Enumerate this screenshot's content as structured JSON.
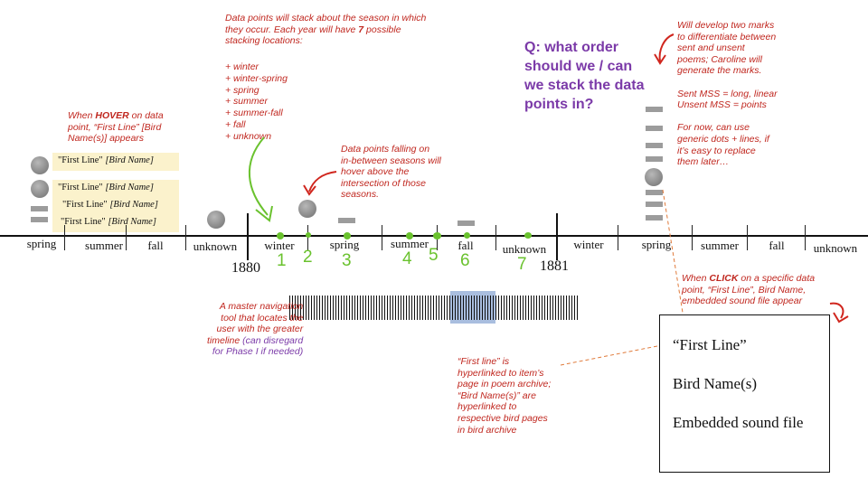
{
  "hover_note": {
    "pre": "When ",
    "emph": "HOVER",
    "line1_post": " on data",
    "line2": "point, “First Line” [Bird",
    "line3": "Name(s)] appears"
  },
  "hover_items": [
    {
      "line": "\"First Line\"",
      "bird": "[Bird Name]"
    },
    {
      "line": "\"First Line\"",
      "bird": "[Bird Name]"
    },
    {
      "line": "\"First Line\"",
      "bird": "[Bird Name]"
    },
    {
      "line": "\"First Line\"",
      "bird": "[Bird Name]"
    }
  ],
  "stack_note": {
    "line1": "Data points will stack about the season in which",
    "line2": "they occur. Each year will have ",
    "line2_num": "7",
    "line2_post": " possible",
    "line3": "stacking locations:",
    "items": [
      "+ winter",
      "+ winter-spring",
      "+ spring",
      "+ summer",
      "+ summer-fall",
      "+ fall",
      "+ unknown"
    ]
  },
  "between_note": "Data points falling on\nin-between seasons will\nhover above the\nintersection of those\nseasons.",
  "question": "Q: what order\nshould we / can\nwe stack the data\npoints in?",
  "marks_note": "Will develop two marks\nto differentiate between\nsent and unsent\npoems; Caroline will\ngenerate the marks.\n\nSent MSS = long, linear\nUnsent MSS = points\n\nFor now, can use\ngeneric dots + lines, if\nit’s easy to replace\nthem later…",
  "timeline": {
    "seasons": [
      "spring",
      "summer",
      "fall",
      "unknown",
      "winter",
      "spring",
      "summer",
      "fall",
      "unknown",
      "winter",
      "spring",
      "summer",
      "fall",
      "unknown"
    ],
    "year_1880": "1880",
    "year_1881": "1881",
    "numbers": [
      "1",
      "2",
      "3",
      "4",
      "5",
      "6",
      "7"
    ],
    "accent_green": "#6ac22e"
  },
  "nav_note": {
    "red": "A master navigation\ntool that locates the\nuser with the greater\ntimeline",
    "purple_inline": " (can disregard",
    "purple_line": "for Phase I if needed)"
  },
  "hyperlink_note": "“First line” is\nhyperlinked to item’s\npage in poem archive;\n“Bird Name(s)” are\nhyperlinked to\nrespective bird pages\nin bird archive",
  "click_note": {
    "pre": "When ",
    "emph": "CLICK",
    "line1_post": " on a specific data",
    "line2": "point, “First Line”, Bird Name,",
    "line3": "embedded sound file appear"
  },
  "card": {
    "first_line": "“First Line”",
    "bird_names": "Bird Name(s)",
    "sound": "Embedded sound file"
  },
  "colors": {
    "annotation_red": "#c0271f",
    "question_purple": "#7b3aa8",
    "hover_bg": "#fbf2cc",
    "nav_highlight": "#a9bedf"
  }
}
